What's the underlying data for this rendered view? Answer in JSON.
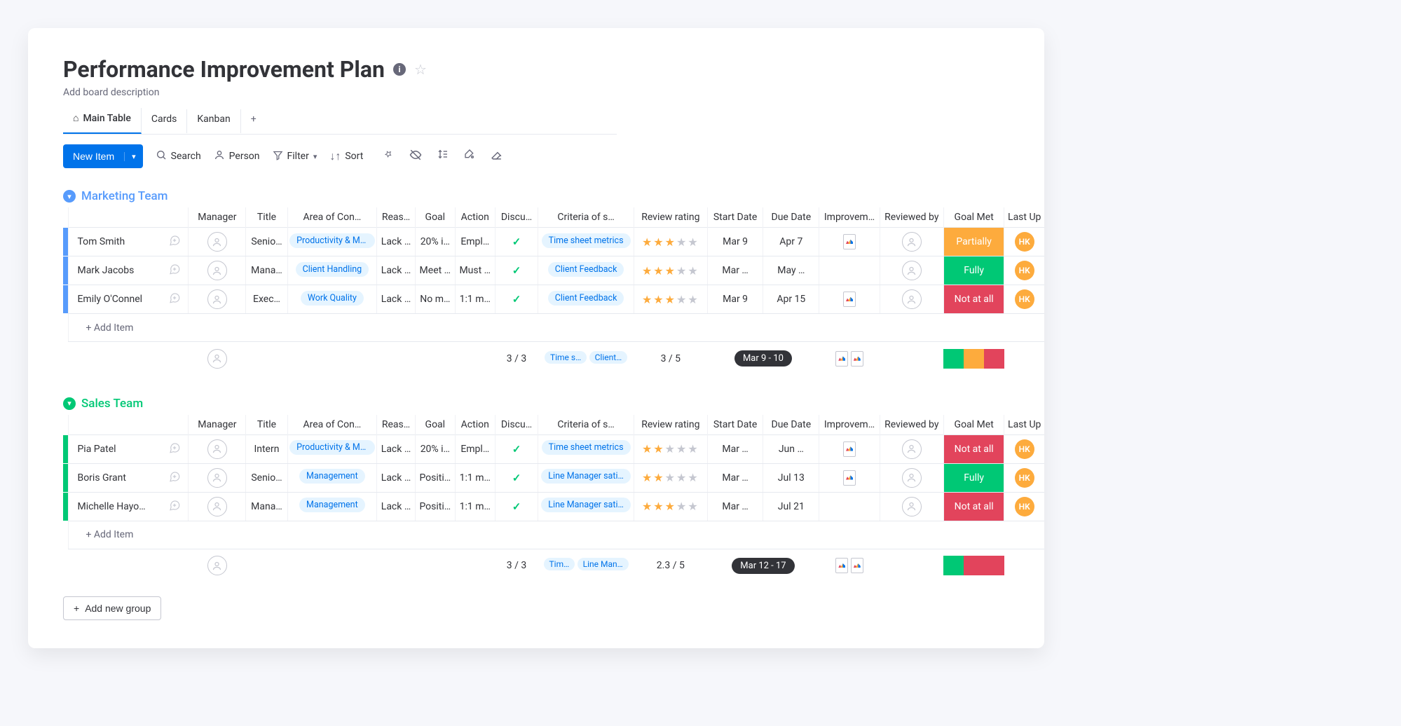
{
  "board": {
    "title": "Performance Improvement Plan",
    "description_placeholder": "Add board description"
  },
  "tabs": {
    "main": "Main Table",
    "cards": "Cards",
    "kanban": "Kanban",
    "add": "+"
  },
  "toolbar": {
    "new_item": "New Item",
    "search": "Search",
    "person": "Person",
    "filter": "Filter",
    "sort": "Sort"
  },
  "columns": {
    "name": "",
    "manager": "Manager",
    "title": "Title",
    "area": "Area of Con…",
    "reason": "Reas…",
    "goal": "Goal",
    "action": "Action",
    "discussed": "Discu…",
    "criteria": "Criteria of s…",
    "rating": "Review rating",
    "start_date": "Start Date",
    "due_date": "Due Date",
    "improvement": "Improvem…",
    "reviewed_by": "Reviewed by",
    "goal_met": "Goal Met",
    "last_updated": "Last Up"
  },
  "colors": {
    "blue": "#579bfc",
    "green": "#00c875",
    "accent": "#0073ea",
    "goal_fully": "#00c875",
    "goal_partially": "#fdab3d",
    "goal_notatall": "#e2445c",
    "star_on": "#fdab3d",
    "star_off": "#c5c7d0",
    "avatar": "#fdab3d"
  },
  "groups": [
    {
      "name": "Marketing Team",
      "color": "#579bfc",
      "bar_color": "#579bfc",
      "rows": [
        {
          "name": "Tom Smith",
          "title": "Senio…",
          "area": "Productivity & Mo…",
          "reason": "Lack …",
          "goal": "20% i…",
          "action": "Empl…",
          "discussed": true,
          "criteria": "Time sheet metrics",
          "rating": 3,
          "start_date": "Mar 9",
          "due_date": "Apr 7",
          "has_doc": true,
          "goal_met": "Partially",
          "goal_met_color": "#fdab3d",
          "avatar": "HK"
        },
        {
          "name": "Mark Jacobs",
          "title": "Mana…",
          "area": "Client Handling",
          "reason": "Lack …",
          "goal": "Meet …",
          "action": "Must …",
          "discussed": true,
          "criteria": "Client Feedback",
          "rating": 3,
          "start_date": "Mar …",
          "due_date": "May …",
          "has_doc": false,
          "goal_met": "Fully",
          "goal_met_color": "#00c875",
          "avatar": "HK"
        },
        {
          "name": "Emily O'Connel",
          "title": "Exec…",
          "area": "Work Quality",
          "reason": "Lack …",
          "goal": "No m…",
          "action": "1:1 m…",
          "discussed": true,
          "criteria": "Client Feedback",
          "rating": 3,
          "start_date": "Mar 9",
          "due_date": "Apr 15",
          "has_doc": true,
          "goal_met": "Not at all",
          "goal_met_color": "#e2445c",
          "avatar": "HK"
        }
      ],
      "summary": {
        "discussed": "3 / 3",
        "tags": [
          "Time s…",
          "Client…"
        ],
        "rating": "3  / 5",
        "date_range": "Mar 9 - 10",
        "docs": 2,
        "goal_colors": [
          "#00c875",
          "#fdab3d",
          "#e2445c"
        ]
      }
    },
    {
      "name": "Sales Team",
      "color": "#00c875",
      "bar_color": "#00c875",
      "rows": [
        {
          "name": "Pia Patel",
          "title": "Intern",
          "area": "Productivity & Mo…",
          "reason": "Lack …",
          "goal": "20% i…",
          "action": "Empl…",
          "discussed": true,
          "criteria": "Time sheet metrics",
          "rating": 2,
          "start_date": "Mar …",
          "due_date": "Jun …",
          "has_doc": true,
          "goal_met": "Not at all",
          "goal_met_color": "#e2445c",
          "avatar": "HK"
        },
        {
          "name": "Boris Grant",
          "title": "Senio…",
          "area": "Management",
          "reason": "Lack …",
          "goal": "Positi…",
          "action": "1:1 m…",
          "discussed": true,
          "criteria": "Line Manager sati…",
          "rating": 2,
          "start_date": "Mar …",
          "due_date": "Jul 13",
          "has_doc": true,
          "goal_met": "Fully",
          "goal_met_color": "#00c875",
          "avatar": "HK"
        },
        {
          "name": "Michelle Hayo…",
          "title": "Mana…",
          "area": "Management",
          "reason": "Lack …",
          "goal": "Positi…",
          "action": "1:1 m…",
          "discussed": true,
          "criteria": "Line Manager sati…",
          "rating": 3,
          "start_date": "Mar …",
          "due_date": "Jul 21",
          "has_doc": false,
          "goal_met": "Not at all",
          "goal_met_color": "#e2445c",
          "avatar": "HK"
        }
      ],
      "summary": {
        "discussed": "3 / 3",
        "tags": [
          "Tim…",
          "Line Man…"
        ],
        "rating": "2.3  / 5",
        "date_range": "Mar 12 - 17",
        "docs": 2,
        "goal_colors": [
          "#00c875",
          "#e2445c",
          "#e2445c"
        ]
      }
    }
  ],
  "add_item_label": "+ Add Item",
  "add_group_label": "Add new group"
}
